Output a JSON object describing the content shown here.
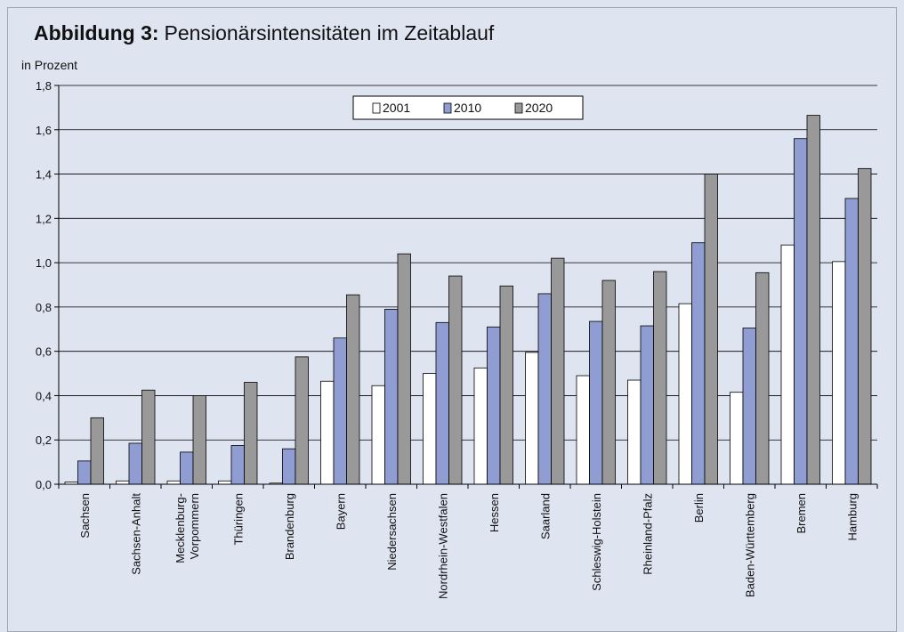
{
  "chart_data": {
    "type": "bar",
    "title_label": "Abbildung 3:",
    "title": "Pensionärsintensitäten im Zeitablauf",
    "y_label": "in Prozent",
    "categories": [
      "Sachsen",
      "Sachsen-Anhalt",
      "Mecklenburg-Vorpommern",
      "Thüringen",
      "Brandenburg",
      "Bayern",
      "Niedersachsen",
      "Nordrhein-Westfalen",
      "Hessen",
      "Saarland",
      "Schleswig-Holstein",
      "Rheinland-Pfalz",
      "Berlin",
      "Baden-Württemberg",
      "Bremen",
      "Hamburg"
    ],
    "series": [
      {
        "name": "2001",
        "color": "#ffffff",
        "values": [
          0.01,
          0.015,
          0.015,
          0.015,
          0.005,
          0.465,
          0.445,
          0.5,
          0.525,
          0.595,
          0.49,
          0.47,
          0.815,
          0.415,
          1.08,
          1.005
        ]
      },
      {
        "name": "2010",
        "color": "#8f9dd2",
        "values": [
          0.105,
          0.185,
          0.145,
          0.175,
          0.16,
          0.66,
          0.79,
          0.73,
          0.71,
          0.86,
          0.735,
          0.715,
          1.09,
          0.705,
          1.56,
          1.29
        ]
      },
      {
        "name": "2020",
        "color": "#999999",
        "values": [
          0.3,
          0.425,
          0.4,
          0.46,
          0.575,
          0.855,
          1.04,
          0.94,
          0.895,
          1.02,
          0.92,
          0.96,
          1.4,
          0.955,
          1.665,
          1.425
        ]
      }
    ],
    "ylim": [
      0,
      1.8
    ],
    "yticks": [
      {
        "value": 0,
        "label": "0,0"
      },
      {
        "value": 0.2,
        "label": "0,2"
      },
      {
        "value": 0.4,
        "label": "0,4"
      },
      {
        "value": 0.6,
        "label": "0,6"
      },
      {
        "value": 0.8,
        "label": "0,8"
      },
      {
        "value": 1.0,
        "label": "1,0"
      },
      {
        "value": 1.2,
        "label": "1,2"
      },
      {
        "value": 1.4,
        "label": "1,4"
      },
      {
        "value": 1.6,
        "label": "1,6"
      },
      {
        "value": 1.8,
        "label": "1,8"
      }
    ],
    "grid": true,
    "legend": "upper center"
  }
}
